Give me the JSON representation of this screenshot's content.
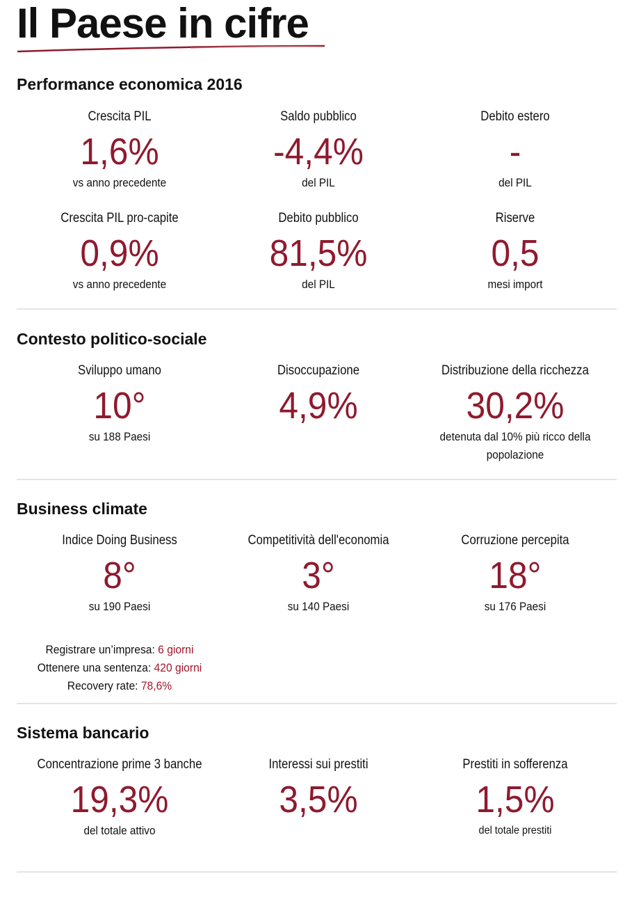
{
  "title": "Il Paese in cifre",
  "colors": {
    "accent": "#8f1a2e",
    "rule": "#e4e4e4"
  },
  "sections": [
    {
      "title": "Performance economica 2016",
      "rows": [
        [
          {
            "label": "Crescita PIL",
            "value": "1,6%",
            "sub": "vs anno precedente"
          },
          {
            "label": "Saldo pubblico",
            "value": "-4,4%",
            "sub": "del PIL"
          },
          {
            "label": "Debito estero",
            "value": "-",
            "sub": "del PIL"
          }
        ],
        [
          {
            "label": "Crescita PIL pro-capite",
            "value": "0,9%",
            "sub": "vs anno precedente"
          },
          {
            "label": "Debito pubblico",
            "value": "81,5%",
            "sub": "del PIL"
          },
          {
            "label": "Riserve",
            "value": "0,5",
            "sub": "mesi import"
          }
        ]
      ]
    },
    {
      "title": "Contesto politico-sociale",
      "rows": [
        [
          {
            "label": "Sviluppo umano",
            "value": "10°",
            "sub": "su 188 Paesi"
          },
          {
            "label": "Disoccupazione",
            "value": "4,9%",
            "sub": ""
          },
          {
            "label": "Distribuzione della ricchezza",
            "value": "30,2%",
            "sub": "detenuta dal 10% più ricco della popolazione"
          }
        ]
      ]
    },
    {
      "title": "Business climate",
      "rows": [
        [
          {
            "label": "Indice Doing Business",
            "value": "8°",
            "sub": "su 190 Paesi"
          },
          {
            "label": "Competitività dell'economia",
            "value": "3°",
            "sub": "su 140 Paesi"
          },
          {
            "label": "Corruzione percepita",
            "value": "18°",
            "sub": "su 176 Paesi"
          }
        ]
      ],
      "extra": [
        {
          "label": "Registrare un’impresa: ",
          "value": "6 giorni"
        },
        {
          "label": "Ottenere una sentenza: ",
          "value": "420 giorni"
        },
        {
          "label": "Recovery rate: ",
          "value": "78,6%"
        }
      ]
    },
    {
      "title": "Sistema bancario",
      "rows": [
        [
          {
            "label": "Concentrazione prime 3 banche",
            "value": "19,3%",
            "sub": "del totale attivo"
          },
          {
            "label": "Interessi sui prestiti",
            "value": "3,5%",
            "sub": ""
          },
          {
            "label": "Prestiti in sofferenza",
            "value": "1,5%",
            "sub": "del totale prestiti"
          }
        ]
      ]
    }
  ]
}
